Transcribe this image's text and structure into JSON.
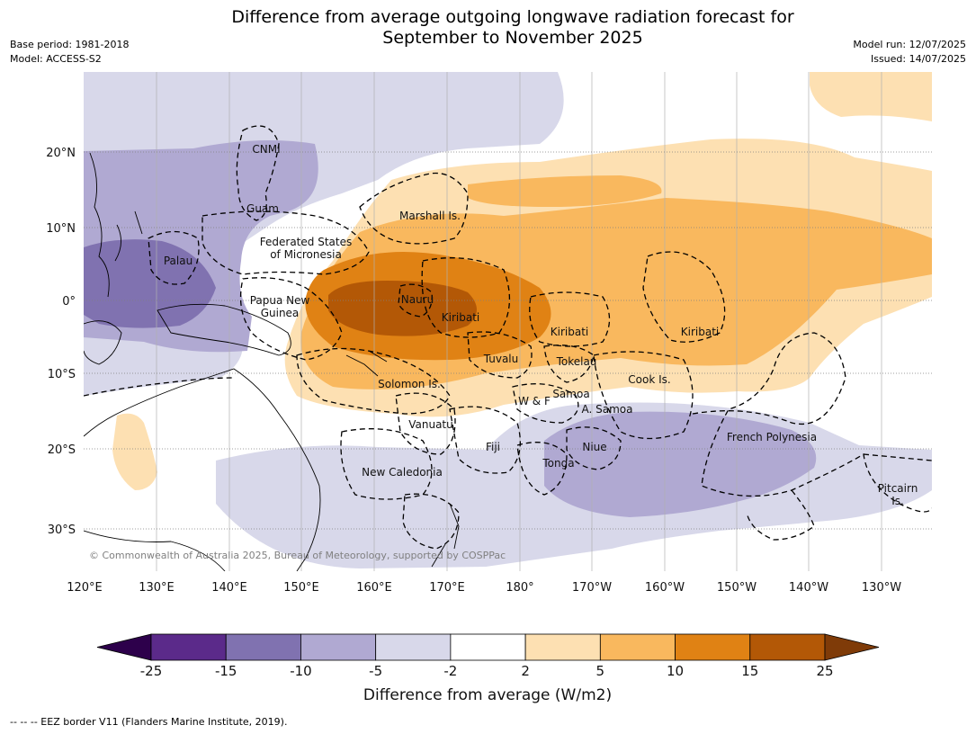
{
  "title_line1": "Difference from average outgoing longwave radiation forecast for",
  "title_line2": "September to November 2025",
  "meta_left": [
    "Base period: 1981-2018",
    "Model: ACCESS-S2"
  ],
  "meta_right": [
    "Model run: 12/07/2025",
    "Issued: 14/07/2025"
  ],
  "copyright": "© Commonwealth of Australia 2025, Bureau of Meteorology, supported by COSPPac",
  "lat_labels": [
    "20°N",
    "10°N",
    "0°",
    "10°S",
    "20°S",
    "30°S"
  ],
  "lon_labels": [
    "120°E",
    "130°E",
    "140°E",
    "150°E",
    "160°E",
    "170°E",
    "180°",
    "170°W",
    "160°W",
    "150°W",
    "140°W",
    "130°W"
  ],
  "regions": [
    "CNMI",
    "Guam",
    "Marshall Is.",
    "Federated States",
    "of Micronesia",
    "Palau",
    "Papua New",
    "Guinea",
    "Nauru",
    "Kiribati",
    "Kiribati",
    "Kiribati",
    "Tuvalu",
    "Tokelau",
    "Cook Is.",
    "Solomon Is.",
    "W & F",
    "Samoa",
    "A. Samoa",
    "Vanuatu",
    "Fiji",
    "Niue",
    "Tonga",
    "French Polynesia",
    "New Caledonia",
    "Pitcairn",
    "Is."
  ],
  "colorbar": {
    "ticks": [
      "-25",
      "-15",
      "-10",
      "-5",
      "-2",
      "2",
      "5",
      "10",
      "15",
      "25"
    ],
    "colors": [
      "#5b2a8a",
      "#8072b0",
      "#b0a9d2",
      "#d8d8ea",
      "#ffffff",
      "#fde0b2",
      "#f9b85e",
      "#e08214",
      "#b35806"
    ],
    "under_color": "#2d004b",
    "over_color": "#7f3b08",
    "title": "Difference from average (W/m2)"
  },
  "footnote": "--  --  -- EEZ border V11 (Flanders Marine Institute, 2019)."
}
